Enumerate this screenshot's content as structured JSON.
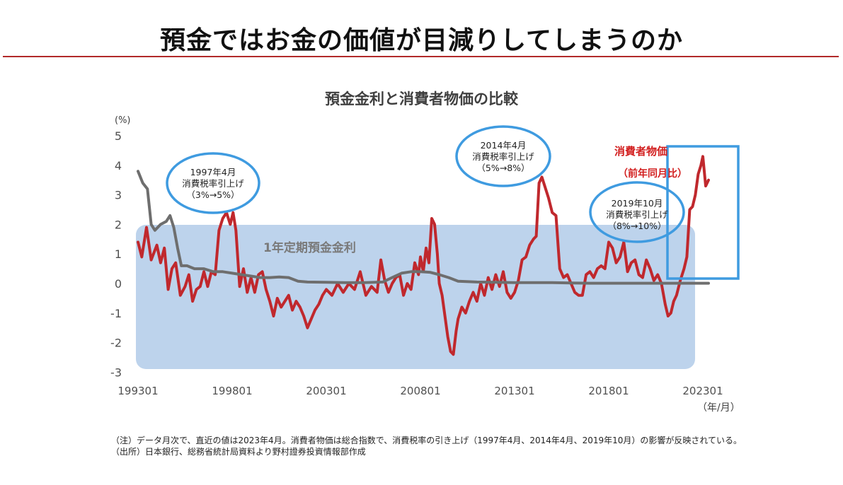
{
  "page": {
    "title": "預金ではお金の価値が目減りしてしまうのか",
    "footnote_1": "（注）データ月次で、直近の値は2023年4月。消費者物価は総合指数で、消費税率の引き上げ（1997年4月、2014年4月、2019年10月）の影響が反映されている。",
    "footnote_2": "（出所）日本銀行、総務省統計局資料より野村證券投資情報部作成"
  },
  "colors": {
    "cpi": "#c0282d",
    "deposit": "#6e6e6e",
    "area": "#bdd3ec",
    "annotation": "#3f9be0",
    "highlight": "#3f9be0",
    "title_rule": "#b22a2a"
  },
  "chart_data": {
    "type": "line",
    "title": "預金金利と消費者物価の比較",
    "ylabel_unit": "(%)",
    "xlabel_unit": "（年/月）",
    "ylim": [
      -3,
      5
    ],
    "yticks": [
      "5",
      "4",
      "3",
      "2",
      "1",
      "0",
      "-1",
      "-2",
      "-3"
    ],
    "xticks": [
      "199301",
      "199801",
      "200301",
      "200801",
      "201301",
      "201801",
      "202301"
    ],
    "series": [
      {
        "name": "消費者物価",
        "subtitle": "（前年同月比）",
        "points": [
          [
            1993.0,
            1.4
          ],
          [
            1993.2,
            0.9
          ],
          [
            1993.45,
            1.9
          ],
          [
            1993.7,
            0.8
          ],
          [
            1994.0,
            1.3
          ],
          [
            1994.2,
            0.7
          ],
          [
            1994.4,
            1.2
          ],
          [
            1994.6,
            -0.2
          ],
          [
            1994.8,
            0.5
          ],
          [
            1995.0,
            0.7
          ],
          [
            1995.25,
            -0.4
          ],
          [
            1995.5,
            -0.1
          ],
          [
            1995.7,
            0.3
          ],
          [
            1995.9,
            -0.6
          ],
          [
            1996.1,
            -0.2
          ],
          [
            1996.3,
            -0.1
          ],
          [
            1996.5,
            0.4
          ],
          [
            1996.7,
            -0.1
          ],
          [
            1996.9,
            0.4
          ],
          [
            1997.1,
            0.3
          ],
          [
            1997.3,
            1.8
          ],
          [
            1997.5,
            2.2
          ],
          [
            1997.7,
            2.4
          ],
          [
            1997.9,
            2.0
          ],
          [
            1998.05,
            2.4
          ],
          [
            1998.2,
            1.8
          ],
          [
            1998.4,
            -0.1
          ],
          [
            1998.6,
            0.5
          ],
          [
            1998.8,
            -0.3
          ],
          [
            1999.0,
            0.2
          ],
          [
            1999.2,
            -0.3
          ],
          [
            1999.4,
            0.3
          ],
          [
            1999.6,
            0.4
          ],
          [
            1999.8,
            -0.2
          ],
          [
            2000.0,
            -0.6
          ],
          [
            2000.2,
            -1.1
          ],
          [
            2000.4,
            -0.5
          ],
          [
            2000.6,
            -0.8
          ],
          [
            2000.8,
            -0.6
          ],
          [
            2001.0,
            -0.4
          ],
          [
            2001.2,
            -0.9
          ],
          [
            2001.4,
            -0.6
          ],
          [
            2001.6,
            -0.8
          ],
          [
            2001.8,
            -1.1
          ],
          [
            2002.0,
            -1.5
          ],
          [
            2002.2,
            -1.2
          ],
          [
            2002.4,
            -0.9
          ],
          [
            2002.6,
            -0.7
          ],
          [
            2002.8,
            -0.4
          ],
          [
            2003.0,
            -0.2
          ],
          [
            2003.3,
            -0.4
          ],
          [
            2003.6,
            0.0
          ],
          [
            2003.9,
            -0.3
          ],
          [
            2004.2,
            0.0
          ],
          [
            2004.5,
            -0.2
          ],
          [
            2004.8,
            0.4
          ],
          [
            2005.1,
            -0.4
          ],
          [
            2005.4,
            -0.1
          ],
          [
            2005.7,
            -0.3
          ],
          [
            2005.9,
            0.8
          ],
          [
            2006.1,
            0.1
          ],
          [
            2006.3,
            -0.3
          ],
          [
            2006.5,
            0.0
          ],
          [
            2006.7,
            0.2
          ],
          [
            2006.9,
            0.3
          ],
          [
            2007.1,
            -0.4
          ],
          [
            2007.3,
            0.0
          ],
          [
            2007.5,
            -0.2
          ],
          [
            2007.7,
            0.7
          ],
          [
            2007.9,
            0.3
          ],
          [
            2008.0,
            0.9
          ],
          [
            2008.15,
            0.4
          ],
          [
            2008.3,
            1.2
          ],
          [
            2008.45,
            0.7
          ],
          [
            2008.6,
            2.2
          ],
          [
            2008.75,
            2.0
          ],
          [
            2008.9,
            1.0
          ],
          [
            2009.0,
            0.0
          ],
          [
            2009.15,
            -0.4
          ],
          [
            2009.3,
            -1.1
          ],
          [
            2009.45,
            -1.8
          ],
          [
            2009.6,
            -2.3
          ],
          [
            2009.75,
            -2.4
          ],
          [
            2009.9,
            -1.6
          ],
          [
            2010.0,
            -1.2
          ],
          [
            2010.2,
            -0.8
          ],
          [
            2010.4,
            -1.0
          ],
          [
            2010.6,
            -0.6
          ],
          [
            2010.8,
            -0.3
          ],
          [
            2011.0,
            -0.6
          ],
          [
            2011.2,
            0.0
          ],
          [
            2011.4,
            -0.4
          ],
          [
            2011.6,
            0.2
          ],
          [
            2011.8,
            -0.2
          ],
          [
            2012.0,
            0.3
          ],
          [
            2012.2,
            -0.1
          ],
          [
            2012.4,
            0.4
          ],
          [
            2012.6,
            -0.3
          ],
          [
            2012.8,
            -0.5
          ],
          [
            2013.0,
            -0.3
          ],
          [
            2013.2,
            0.1
          ],
          [
            2013.4,
            0.8
          ],
          [
            2013.6,
            0.9
          ],
          [
            2013.8,
            1.3
          ],
          [
            2014.0,
            1.5
          ],
          [
            2014.15,
            1.6
          ],
          [
            2014.3,
            3.4
          ],
          [
            2014.45,
            3.6
          ],
          [
            2014.6,
            3.3
          ],
          [
            2014.8,
            2.9
          ],
          [
            2015.0,
            2.4
          ],
          [
            2015.2,
            2.3
          ],
          [
            2015.4,
            0.5
          ],
          [
            2015.6,
            0.2
          ],
          [
            2015.8,
            0.3
          ],
          [
            2016.0,
            0.0
          ],
          [
            2016.2,
            -0.3
          ],
          [
            2016.4,
            -0.4
          ],
          [
            2016.6,
            -0.4
          ],
          [
            2016.8,
            0.3
          ],
          [
            2017.0,
            0.4
          ],
          [
            2017.2,
            0.2
          ],
          [
            2017.4,
            0.5
          ],
          [
            2017.6,
            0.6
          ],
          [
            2017.8,
            0.5
          ],
          [
            2018.0,
            1.4
          ],
          [
            2018.2,
            1.2
          ],
          [
            2018.4,
            0.7
          ],
          [
            2018.6,
            0.9
          ],
          [
            2018.8,
            1.4
          ],
          [
            2019.0,
            0.4
          ],
          [
            2019.2,
            0.7
          ],
          [
            2019.4,
            0.8
          ],
          [
            2019.6,
            0.3
          ],
          [
            2019.8,
            0.2
          ],
          [
            2020.0,
            0.8
          ],
          [
            2020.2,
            0.5
          ],
          [
            2020.4,
            0.1
          ],
          [
            2020.6,
            0.3
          ],
          [
            2020.8,
            0.0
          ],
          [
            2021.0,
            -0.7
          ],
          [
            2021.15,
            -1.1
          ],
          [
            2021.3,
            -1.0
          ],
          [
            2021.45,
            -0.6
          ],
          [
            2021.6,
            -0.4
          ],
          [
            2021.8,
            0.1
          ],
          [
            2022.0,
            0.5
          ],
          [
            2022.15,
            0.9
          ],
          [
            2022.3,
            2.5
          ],
          [
            2022.45,
            2.6
          ],
          [
            2022.6,
            3.0
          ],
          [
            2022.75,
            3.7
          ],
          [
            2022.9,
            4.0
          ],
          [
            2023.0,
            4.3
          ],
          [
            2023.15,
            3.3
          ],
          [
            2023.3,
            3.5
          ]
        ]
      },
      {
        "name": "1年定期預金金利",
        "points": [
          [
            1993.0,
            3.8
          ],
          [
            1993.25,
            3.4
          ],
          [
            1993.5,
            3.2
          ],
          [
            1993.7,
            2.0
          ],
          [
            1993.9,
            1.8
          ],
          [
            1994.2,
            2.0
          ],
          [
            1994.5,
            2.1
          ],
          [
            1994.7,
            2.3
          ],
          [
            1994.9,
            1.9
          ],
          [
            1995.1,
            1.2
          ],
          [
            1995.3,
            0.6
          ],
          [
            1995.6,
            0.6
          ],
          [
            1996.0,
            0.5
          ],
          [
            1996.5,
            0.5
          ],
          [
            1997.0,
            0.4
          ],
          [
            1997.5,
            0.4
          ],
          [
            1998.0,
            0.35
          ],
          [
            1998.5,
            0.3
          ],
          [
            1999.0,
            0.25
          ],
          [
            1999.5,
            0.2
          ],
          [
            2000.0,
            0.2
          ],
          [
            2000.5,
            0.22
          ],
          [
            2001.0,
            0.2
          ],
          [
            2001.5,
            0.08
          ],
          [
            2002.0,
            0.05
          ],
          [
            2003.0,
            0.04
          ],
          [
            2004.0,
            0.03
          ],
          [
            2005.0,
            0.03
          ],
          [
            2006.0,
            0.05
          ],
          [
            2006.5,
            0.2
          ],
          [
            2007.0,
            0.35
          ],
          [
            2007.5,
            0.4
          ],
          [
            2008.0,
            0.4
          ],
          [
            2008.5,
            0.38
          ],
          [
            2009.0,
            0.3
          ],
          [
            2009.5,
            0.2
          ],
          [
            2010.0,
            0.08
          ],
          [
            2011.0,
            0.05
          ],
          [
            2012.0,
            0.04
          ],
          [
            2013.0,
            0.03
          ],
          [
            2014.0,
            0.03
          ],
          [
            2015.0,
            0.03
          ],
          [
            2016.0,
            0.02
          ],
          [
            2017.0,
            0.01
          ],
          [
            2018.0,
            0.01
          ],
          [
            2019.0,
            0.01
          ],
          [
            2020.0,
            0.01
          ],
          [
            2021.0,
            0.01
          ],
          [
            2022.0,
            0.01
          ],
          [
            2023.3,
            0.01
          ]
        ]
      }
    ],
    "area": {
      "name": "1年定期預金金利",
      "label": "1年定期預金金利"
    },
    "annotations": [
      {
        "text": [
          "1997年4月",
          "消費税率引上げ",
          "（3%→5%）"
        ]
      },
      {
        "text": [
          "2014年4月",
          "消費税率引上げ",
          "（5%→8%）"
        ]
      },
      {
        "text": [
          "2019年10月",
          "消費税率引上げ",
          "（8%→10%）"
        ]
      }
    ]
  }
}
